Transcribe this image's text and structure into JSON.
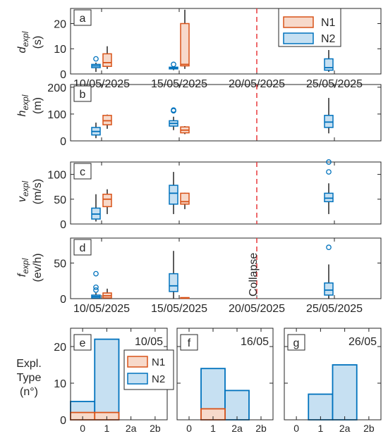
{
  "colors": {
    "N1": "#D95319",
    "N1_fill": "#F7D9CA",
    "N2": "#0072BD",
    "N2_fill": "#C6E0F2",
    "collapse": "#E8383B",
    "axis": "#262626"
  },
  "legend_top": [
    "N1",
    "N2"
  ],
  "legend_bottom": [
    "N1",
    "N2"
  ],
  "collapse_label": "Collapse",
  "chart_data": [
    {
      "type": "box",
      "panel": "a",
      "ylabel": "d_expl (s)",
      "ylabel_main": "d",
      "ylabel_sub": "expl",
      "ylabel_unit": "(s)",
      "ylim": [
        0,
        26
      ],
      "yticks": [
        0,
        10,
        20
      ],
      "x_axis": "date",
      "xlim": [
        "2025-05-08",
        "2025-05-28"
      ],
      "xticks": [
        "10/05/2025",
        "15/05/2025",
        "20/05/2025",
        "25/05/2025"
      ],
      "collapse_date": "2025-05-20",
      "series": [
        {
          "name": "N2",
          "boxes": [
            {
              "date": "2025-05-10",
              "whislo": 0.8,
              "q1": 2.5,
              "med": 3.2,
              "q3": 3.8,
              "whishi": 4.5,
              "fliers": [
                6
              ]
            },
            {
              "date": "2025-05-15",
              "whislo": 1.5,
              "q1": 2.0,
              "med": 2.3,
              "q3": 2.7,
              "whishi": 3.0,
              "fliers": [
                3.8
              ]
            },
            {
              "date": "2025-05-25",
              "whislo": 0.8,
              "q1": 1.5,
              "med": 2.5,
              "q3": 6,
              "whishi": 9.5,
              "fliers": []
            }
          ]
        },
        {
          "name": "N1",
          "boxes": [
            {
              "date": "2025-05-10",
              "whislo": 2,
              "q1": 3,
              "med": 4.5,
              "q3": 8,
              "whishi": 11,
              "fliers": []
            },
            {
              "date": "2025-05-15",
              "whislo": 2,
              "q1": 3.2,
              "med": 3.8,
              "q3": 20,
              "whishi": 25.5,
              "fliers": []
            }
          ]
        }
      ]
    },
    {
      "type": "box",
      "panel": "b",
      "ylabel": "h_expl (m)",
      "ylabel_main": "h",
      "ylabel_sub": "expl",
      "ylabel_unit": "(m)",
      "ylim": [
        0,
        210
      ],
      "yticks": [
        0,
        100,
        200
      ],
      "x_axis": "date",
      "xlim": [
        "2025-05-08",
        "2025-05-28"
      ],
      "collapse_date": "2025-05-20",
      "series": [
        {
          "name": "N2",
          "boxes": [
            {
              "date": "2025-05-10",
              "whislo": 10,
              "q1": 22,
              "med": 35,
              "q3": 50,
              "whishi": 68,
              "fliers": []
            },
            {
              "date": "2025-05-15",
              "whislo": 40,
              "q1": 55,
              "med": 65,
              "q3": 75,
              "whishi": 90,
              "fliers": [
                112,
                115
              ]
            },
            {
              "date": "2025-05-25",
              "whislo": 28,
              "q1": 50,
              "med": 70,
              "q3": 95,
              "whishi": 160,
              "fliers": []
            }
          ]
        },
        {
          "name": "N1",
          "boxes": [
            {
              "date": "2025-05-10",
              "whislo": 45,
              "q1": 60,
              "med": 75,
              "q3": 95,
              "whishi": 98,
              "fliers": []
            },
            {
              "date": "2025-05-15",
              "whislo": 25,
              "q1": 30,
              "med": 40,
              "q3": 52,
              "whishi": 55,
              "fliers": []
            }
          ]
        }
      ]
    },
    {
      "type": "box",
      "panel": "c",
      "ylabel": "v_expl (m/s)",
      "ylabel_main": "v",
      "ylabel_sub": "expl",
      "ylabel_unit": "(m/s)",
      "ylim": [
        0,
        125
      ],
      "yticks": [
        0,
        50,
        100
      ],
      "x_axis": "date",
      "xlim": [
        "2025-05-08",
        "2025-05-28"
      ],
      "collapse_date": "2025-05-20",
      "series": [
        {
          "name": "N2",
          "boxes": [
            {
              "date": "2025-05-10",
              "whislo": 5,
              "q1": 10,
              "med": 20,
              "q3": 32,
              "whishi": 60,
              "fliers": []
            },
            {
              "date": "2025-05-15",
              "whislo": 20,
              "q1": 40,
              "med": 62,
              "q3": 78,
              "whishi": 105,
              "fliers": []
            },
            {
              "date": "2025-05-25",
              "whislo": 20,
              "q1": 45,
              "med": 52,
              "q3": 62,
              "whishi": 82,
              "fliers": [
                105,
                125
              ]
            }
          ]
        },
        {
          "name": "N1",
          "boxes": [
            {
              "date": "2025-05-10",
              "whislo": 20,
              "q1": 35,
              "med": 50,
              "q3": 60,
              "whishi": 70,
              "fliers": []
            },
            {
              "date": "2025-05-15",
              "whislo": 30,
              "q1": 40,
              "med": 45,
              "q3": 62,
              "whishi": 63,
              "fliers": []
            }
          ]
        }
      ]
    },
    {
      "type": "box",
      "panel": "d",
      "ylabel": "f_expl (ev/h)",
      "ylabel_main": "f",
      "ylabel_sub": "expl",
      "ylabel_unit": "(ev/h)",
      "ylim": [
        0,
        85
      ],
      "yticks": [
        0,
        50
      ],
      "x_axis": "date",
      "xlim": [
        "2025-05-08",
        "2025-05-28"
      ],
      "xticks": [
        "10/05/2025",
        "15/05/2025",
        "20/05/2025",
        "25/05/2025"
      ],
      "collapse_date": "2025-05-20",
      "series": [
        {
          "name": "N2",
          "boxes": [
            {
              "date": "2025-05-10",
              "whislo": 0,
              "q1": 1,
              "med": 3,
              "q3": 5,
              "whishi": 8,
              "fliers": [
                12,
                16,
                35
              ]
            },
            {
              "date": "2025-05-15",
              "whislo": 0,
              "q1": 10,
              "med": 18,
              "q3": 35,
              "whishi": 67,
              "fliers": []
            },
            {
              "date": "2025-05-25",
              "whislo": 0,
              "q1": 5,
              "med": 12,
              "q3": 22,
              "whishi": 48,
              "fliers": [
                72
              ]
            }
          ]
        },
        {
          "name": "N1",
          "boxes": [
            {
              "date": "2025-05-10",
              "whislo": 0,
              "q1": 1,
              "med": 4,
              "q3": 8,
              "whishi": 14,
              "fliers": []
            },
            {
              "date": "2025-05-15",
              "whislo": 0,
              "q1": 0.5,
              "med": 1,
              "q3": 1.5,
              "whishi": 2,
              "fliers": []
            }
          ]
        }
      ]
    },
    {
      "type": "bar",
      "panel": "e",
      "date_label": "10/05",
      "ylabel": "Expl. Type (n°)",
      "ylabel_line1": "Expl.",
      "ylabel_line2": "Type",
      "ylabel_line3": "(n°)",
      "categories": [
        "0",
        "1",
        "2a",
        "2b"
      ],
      "ylim": [
        0,
        25
      ],
      "yticks": [
        0,
        10,
        20
      ],
      "series": [
        {
          "name": "N2",
          "values": [
            5,
            22,
            0,
            0
          ]
        },
        {
          "name": "N1",
          "values": [
            2,
            2,
            0,
            0
          ]
        }
      ]
    },
    {
      "type": "bar",
      "panel": "f",
      "date_label": "16/05",
      "categories": [
        "0",
        "1",
        "2a",
        "2b"
      ],
      "ylim": [
        0,
        25
      ],
      "series": [
        {
          "name": "N2",
          "values": [
            0,
            14,
            8,
            0
          ]
        },
        {
          "name": "N1",
          "values": [
            0,
            3,
            0,
            0
          ]
        }
      ]
    },
    {
      "type": "bar",
      "panel": "g",
      "date_label": "26/05",
      "categories": [
        "0",
        "1",
        "2a",
        "2b"
      ],
      "ylim": [
        0,
        25
      ],
      "series": [
        {
          "name": "N2",
          "values": [
            0,
            7,
            15,
            0
          ]
        },
        {
          "name": "N1",
          "values": [
            0,
            0,
            0,
            0
          ]
        }
      ]
    }
  ]
}
